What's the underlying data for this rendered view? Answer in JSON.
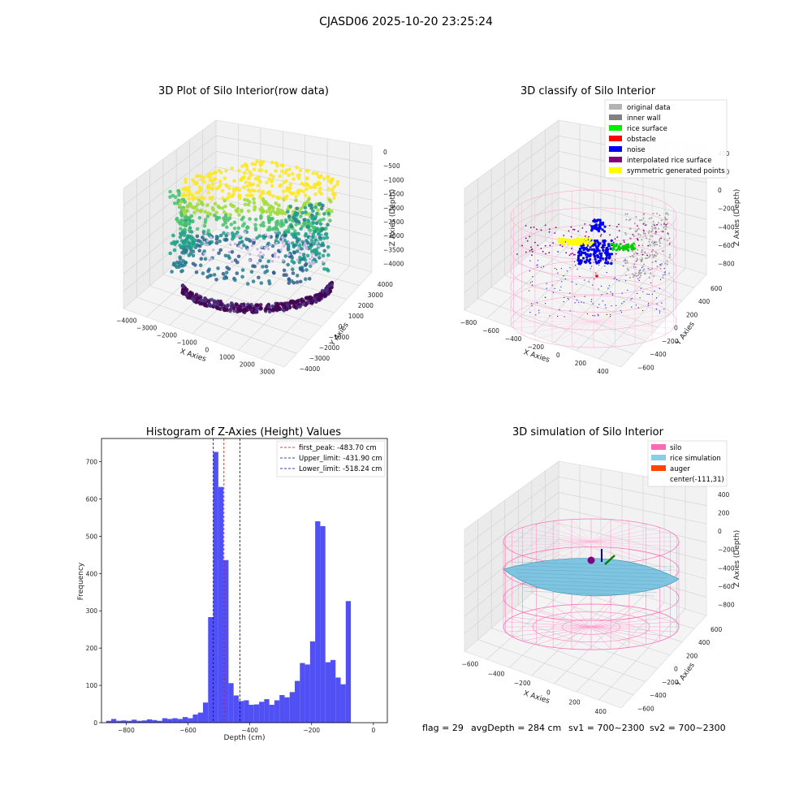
{
  "suptitle": "CJASD06 2025-10-20 23:25:24",
  "chart_data": [
    {
      "type": "scatter3d",
      "title": "3D Plot of Silo Interior(row data)",
      "xlabel": "X Axies",
      "ylabel": "Y Axies",
      "zlabel": "Z Axies (Depth)",
      "x_ticks": [
        "−4000",
        "−3000",
        "−2000",
        "−1000",
        "0",
        "1000",
        "2000",
        "3000"
      ],
      "y_ticks": [
        "−4000",
        "−3000",
        "−2000",
        "−1000",
        "0",
        "1000",
        "2000",
        "3000",
        "4000"
      ],
      "z_ticks": [
        "0",
        "−500",
        "−1000",
        "−1500",
        "−2000",
        "−2500",
        "−3000",
        "−3500",
        "−4000"
      ],
      "colormap": "viridis",
      "grid": true
    },
    {
      "type": "scatter3d",
      "title": "3D classify of Silo Interior",
      "xlabel": "X Axies",
      "ylabel": "Y Axies",
      "zlabel": "Z Axies (Depth)",
      "x_ticks": [
        "−800",
        "−600",
        "−400",
        "−200",
        "0",
        "200",
        "400"
      ],
      "y_ticks": [
        "−600",
        "−400",
        "−200",
        "0",
        "200",
        "400",
        "600"
      ],
      "z_ticks": [
        "400",
        "200",
        "0",
        "−200",
        "−400",
        "−600",
        "−800"
      ],
      "legend": {
        "position": "upper right",
        "items": [
          {
            "label": "original data",
            "color": "#b3b3b3"
          },
          {
            "label": "inner wall",
            "color": "#808080"
          },
          {
            "label": "rice surface",
            "color": "#00ee00"
          },
          {
            "label": "obstacle",
            "color": "#ff0000"
          },
          {
            "label": "noise",
            "color": "#0000ee"
          },
          {
            "label": "interpolated rice surface",
            "color": "#800080"
          },
          {
            "label": "symmetric generated points",
            "color": "#ffff00"
          }
        ]
      },
      "grid": true
    },
    {
      "type": "bar",
      "title": "Histogram of Z-Axies (Height) Values",
      "xlabel": "Depth (cm)",
      "ylabel": "Frequency",
      "xlim": [
        -880,
        45
      ],
      "ylim": [
        0,
        762
      ],
      "x_ticks": [
        -800,
        -600,
        -400,
        -200,
        0
      ],
      "y_ticks": [
        0,
        100,
        200,
        300,
        400,
        500,
        600,
        700
      ],
      "bin_width": 16.5,
      "bin_start": -865,
      "values": [
        5,
        10,
        5,
        6,
        5,
        8,
        5,
        6,
        9,
        7,
        5,
        12,
        10,
        12,
        10,
        15,
        12,
        22,
        27,
        54,
        283,
        726,
        632,
        436,
        106,
        73,
        58,
        60,
        48,
        49,
        56,
        63,
        48,
        60,
        74,
        68,
        82,
        112,
        160,
        156,
        218,
        540,
        527,
        162,
        168,
        121,
        103,
        326
      ],
      "bar_color": "#5050f5",
      "vlines": [
        {
          "label": "first_peak: -483.70 cm",
          "x": -483.7,
          "color": "#e00000"
        },
        {
          "label": "Upper_limit: -431.90 cm",
          "x": -431.9,
          "color": "#0000aa"
        },
        {
          "label": "Lower_limit: -518.24 cm",
          "x": -518.24,
          "color": "#0000aa"
        }
      ],
      "legend_position": "upper right"
    },
    {
      "type": "surface3d",
      "title": "3D simulation of Silo Interior",
      "xlabel": "X Axies",
      "ylabel": "Y Axies",
      "zlabel": "Z Axies (Depth)",
      "x_ticks": [
        "−600",
        "−400",
        "−200",
        "0",
        "200",
        "400"
      ],
      "y_ticks": [
        "−600",
        "−400",
        "−200",
        "0",
        "200",
        "400",
        "600"
      ],
      "z_ticks": [
        "400",
        "200",
        "0",
        "−200",
        "−400",
        "−600",
        "−800"
      ],
      "legend": {
        "position": "upper right",
        "items": [
          {
            "label": "silo",
            "color": "#ff69b4"
          },
          {
            "label": "rice simulation",
            "color": "#87ceeb"
          },
          {
            "label": "auger",
            "color": "#ff4500"
          },
          {
            "label": "center(-111,31)",
            "color": ""
          }
        ]
      }
    }
  ],
  "footer": {
    "flag": "flag = 29",
    "avg_depth": "avgDepth = 284 cm",
    "sv1": "sv1 = 700~2300",
    "sv2": "sv2 = 700~2300"
  }
}
